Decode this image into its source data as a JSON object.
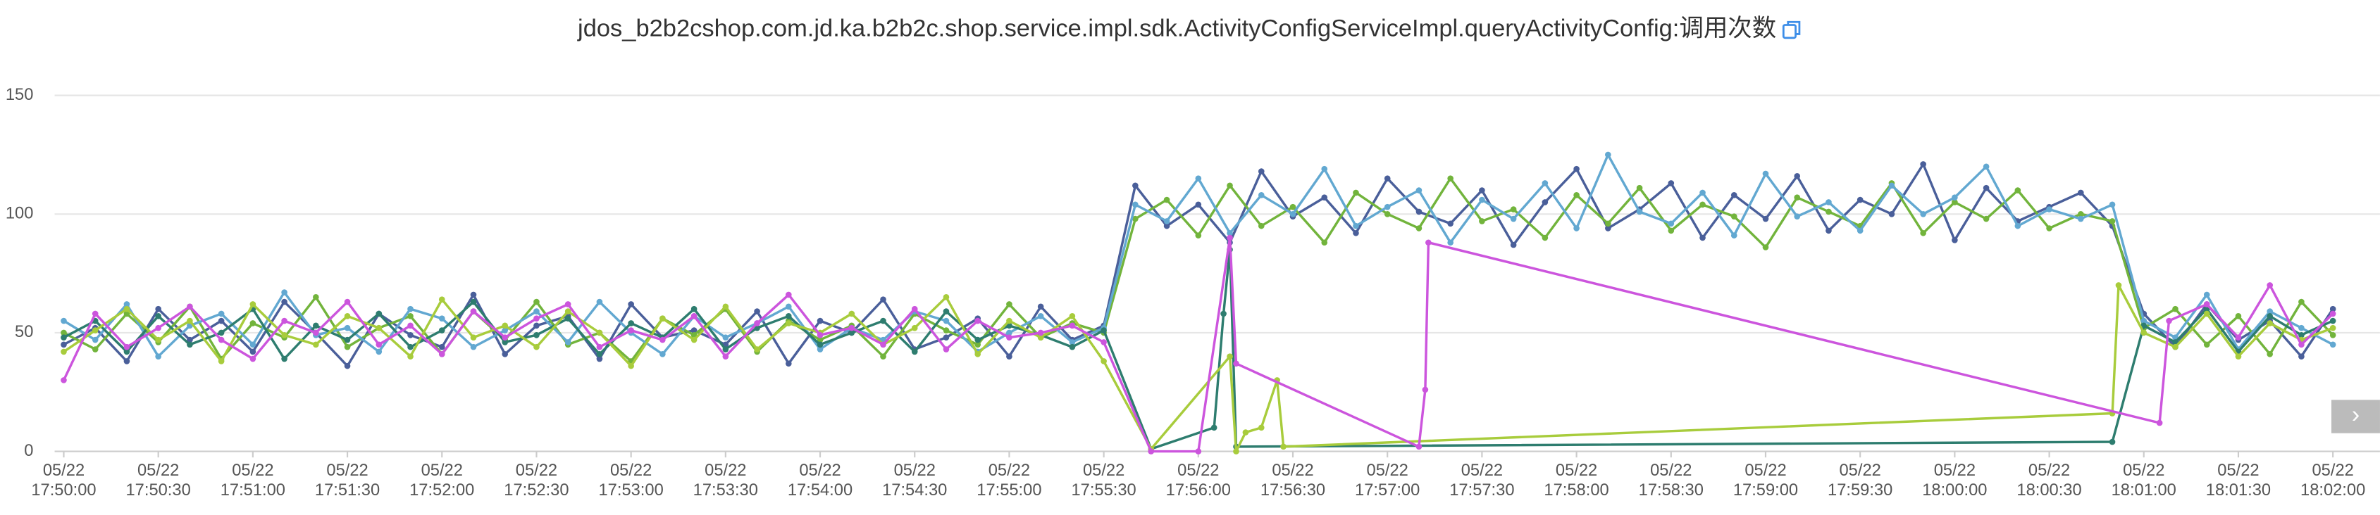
{
  "chart_data": {
    "type": "line",
    "title": "jdos_b2b2cshop.com.jd.ka.b2b2c.shop.service.impl.sdk.ActivityConfigServiceImpl.queryActivityConfig:调用次数",
    "xlim": [
      "17:50:00",
      "18:02:00"
    ],
    "xticks": [
      {
        "value": "17:50:00",
        "label": "05/22 17:50:00"
      },
      {
        "value": "17:50:30",
        "label": "05/22 17:50:30"
      },
      {
        "value": "17:51:00",
        "label": "05/22 17:51:00"
      },
      {
        "value": "17:51:30",
        "label": "05/22 17:51:30"
      },
      {
        "value": "17:52:00",
        "label": "05/22 17:52:00"
      },
      {
        "value": "17:52:30",
        "label": "05/22 17:52:30"
      },
      {
        "value": "17:53:00",
        "label": "05/22 17:53:00"
      },
      {
        "value": "17:53:30",
        "label": "05/22 17:53:30"
      },
      {
        "value": "17:54:00",
        "label": "05/22 17:54:00"
      },
      {
        "value": "17:54:30",
        "label": "05/22 17:54:30"
      },
      {
        "value": "17:55:00",
        "label": "05/22 17:55:00"
      },
      {
        "value": "17:55:30",
        "label": "05/22 17:55:30"
      },
      {
        "value": "17:56:00",
        "label": "05/22 17:56:00"
      },
      {
        "value": "17:56:30",
        "label": "05/22 17:56:30"
      },
      {
        "value": "17:57:00",
        "label": "05/22 17:57:00"
      },
      {
        "value": "17:57:30",
        "label": "05/22 17:57:30"
      },
      {
        "value": "17:58:00",
        "label": "05/22 17:58:00"
      },
      {
        "value": "17:58:30",
        "label": "05/22 17:58:30"
      },
      {
        "value": "17:59:00",
        "label": "05/22 17:59:00"
      },
      {
        "value": "17:59:30",
        "label": "05/22 17:59:30"
      },
      {
        "value": "18:00:00",
        "label": "05/22 18:00:00"
      },
      {
        "value": "18:00:30",
        "label": "05/22 18:00:30"
      },
      {
        "value": "18:01:00",
        "label": "05/22 18:01:00"
      },
      {
        "value": "18:01:30",
        "label": "05/22 18:01:30"
      },
      {
        "value": "18:02:00",
        "label": "05/22 18:02:00"
      }
    ],
    "ylim": [
      0,
      150
    ],
    "yticks": [
      0,
      50,
      100,
      150
    ],
    "grid": true,
    "series": [
      {
        "color": "#4a5f9a",
        "x": [
          "17:50:00",
          "17:50:10",
          "17:50:20",
          "17:50:30",
          "17:50:40",
          "17:50:50",
          "17:51:00",
          "17:51:10",
          "17:51:20",
          "17:51:30",
          "17:51:40",
          "17:51:50",
          "17:52:00",
          "17:52:10",
          "17:52:20",
          "17:52:30",
          "17:52:40",
          "17:52:50",
          "17:53:00",
          "17:53:10",
          "17:53:20",
          "17:53:30",
          "17:53:40",
          "17:53:50",
          "17:54:00",
          "17:54:10",
          "17:54:20",
          "17:54:30",
          "17:54:40",
          "17:54:50",
          "17:55:00",
          "17:55:10",
          "17:55:20",
          "17:55:30",
          "17:55:40",
          "17:55:50",
          "17:56:00",
          "17:56:10",
          "17:56:20",
          "17:56:30",
          "17:56:40",
          "17:56:50",
          "17:57:00",
          "17:57:10",
          "17:57:20",
          "17:57:30",
          "17:57:40",
          "17:57:50",
          "17:58:00",
          "17:58:10",
          "17:58:20",
          "17:58:30",
          "17:58:40",
          "17:58:50",
          "17:59:00",
          "17:59:10",
          "17:59:20",
          "17:59:30",
          "17:59:40",
          "17:59:50",
          "18:00:00",
          "18:00:10",
          "18:00:20",
          "18:00:30",
          "18:00:40",
          "18:00:50",
          "18:01:00",
          "18:01:10",
          "18:01:20",
          "18:01:30",
          "18:01:40",
          "18:01:50",
          "18:02:00"
        ],
        "values": [
          45,
          52,
          38,
          60,
          47,
          55,
          42,
          63,
          50,
          36,
          58,
          49,
          44,
          66,
          41,
          53,
          57,
          39,
          62,
          48,
          51,
          45,
          59,
          37,
          55,
          50,
          64,
          43,
          48,
          56,
          40,
          61,
          47,
          53,
          112,
          95,
          104,
          88,
          118,
          99,
          107,
          92,
          115,
          101,
          96,
          110,
          87,
          105,
          119,
          94,
          102,
          113,
          90,
          108,
          98,
          116,
          93,
          106,
          100,
          121,
          89,
          111,
          97,
          103,
          109,
          95,
          58,
          44,
          62,
          47,
          55,
          40,
          60
        ]
      },
      {
        "color": "#72b43c",
        "x": [
          "17:50:00",
          "17:50:10",
          "17:50:20",
          "17:50:30",
          "17:50:40",
          "17:50:50",
          "17:51:00",
          "17:51:10",
          "17:51:20",
          "17:51:30",
          "17:51:40",
          "17:51:50",
          "17:52:00",
          "17:52:10",
          "17:52:20",
          "17:52:30",
          "17:52:40",
          "17:52:50",
          "17:53:00",
          "17:53:10",
          "17:53:20",
          "17:53:30",
          "17:53:40",
          "17:53:50",
          "17:54:00",
          "17:54:10",
          "17:54:20",
          "17:54:30",
          "17:54:40",
          "17:54:50",
          "17:55:00",
          "17:55:10",
          "17:55:20",
          "17:55:30",
          "17:55:40",
          "17:55:50",
          "17:56:00",
          "17:56:10",
          "17:56:20",
          "17:56:30",
          "17:56:40",
          "17:56:50",
          "17:57:00",
          "17:57:10",
          "17:57:20",
          "17:57:30",
          "17:57:40",
          "17:57:50",
          "17:58:00",
          "17:58:10",
          "17:58:20",
          "17:58:30",
          "17:58:40",
          "17:58:50",
          "17:59:00",
          "17:59:10",
          "17:59:20",
          "17:59:30",
          "17:59:40",
          "17:59:50",
          "18:00:00",
          "18:00:10",
          "18:00:20",
          "18:00:30",
          "18:00:40",
          "18:00:50",
          "18:01:00",
          "18:01:10",
          "18:01:20",
          "18:01:30",
          "18:01:40",
          "18:01:50",
          "18:02:00"
        ],
        "values": [
          50,
          43,
          58,
          46,
          61,
          39,
          54,
          48,
          65,
          44,
          52,
          57,
          41,
          59,
          47,
          63,
          45,
          50,
          38,
          56,
          49,
          60,
          42,
          55,
          47,
          53,
          40,
          58,
          51,
          45,
          62,
          48,
          54,
          50,
          98,
          106,
          91,
          112,
          95,
          103,
          88,
          109,
          100,
          94,
          115,
          97,
          102,
          90,
          108,
          96,
          111,
          93,
          104,
          99,
          86,
          107,
          101,
          95,
          113,
          92,
          105,
          98,
          110,
          94,
          100,
          97,
          52,
          60,
          45,
          57,
          41,
          63,
          49
        ]
      },
      {
        "color": "#62a8d1",
        "x": [
          "17:50:00",
          "17:50:10",
          "17:50:20",
          "17:50:30",
          "17:50:40",
          "17:50:50",
          "17:51:00",
          "17:51:10",
          "17:51:20",
          "17:51:30",
          "17:51:40",
          "17:51:50",
          "17:52:00",
          "17:52:10",
          "17:52:20",
          "17:52:30",
          "17:52:40",
          "17:52:50",
          "17:53:00",
          "17:53:10",
          "17:53:20",
          "17:53:30",
          "17:53:40",
          "17:53:50",
          "17:54:00",
          "17:54:10",
          "17:54:20",
          "17:54:30",
          "17:54:40",
          "17:54:50",
          "17:55:00",
          "17:55:10",
          "17:55:20",
          "17:55:30",
          "17:55:40",
          "17:55:50",
          "17:56:00",
          "17:56:10",
          "17:56:20",
          "17:56:30",
          "17:56:40",
          "17:56:50",
          "17:57:00",
          "17:57:10",
          "17:57:20",
          "17:57:30",
          "17:57:40",
          "17:57:50",
          "17:58:00",
          "17:58:10",
          "17:58:20",
          "17:58:30",
          "17:58:40",
          "17:58:50",
          "17:59:00",
          "17:59:10",
          "17:59:20",
          "17:59:30",
          "17:59:40",
          "17:59:50",
          "18:00:00",
          "18:00:10",
          "18:00:20",
          "18:00:30",
          "18:00:40",
          "18:00:50",
          "18:01:00",
          "18:01:10",
          "18:01:20",
          "18:01:30",
          "18:01:40",
          "18:01:50",
          "18:02:00"
        ],
        "values": [
          55,
          47,
          62,
          40,
          53,
          58,
          45,
          67,
          49,
          52,
          42,
          60,
          56,
          44,
          51,
          59,
          46,
          63,
          50,
          41,
          57,
          48,
          54,
          61,
          43,
          52,
          47,
          59,
          55,
          42,
          50,
          57,
          46,
          52,
          104,
          97,
          115,
          92,
          108,
          100,
          119,
          95,
          103,
          110,
          88,
          106,
          98,
          113,
          94,
          125,
          101,
          96,
          109,
          91,
          117,
          99,
          105,
          93,
          112,
          100,
          107,
          120,
          95,
          102,
          98,
          104,
          55,
          48,
          66,
          43,
          59,
          52,
          45
        ]
      },
      {
        "color": "#2e7d6f",
        "x": [
          "17:50:00",
          "17:50:10",
          "17:50:20",
          "17:50:30",
          "17:50:40",
          "17:50:50",
          "17:51:00",
          "17:51:10",
          "17:51:20",
          "17:51:30",
          "17:51:40",
          "17:51:50",
          "17:52:00",
          "17:52:10",
          "17:52:20",
          "17:52:30",
          "17:52:40",
          "17:52:50",
          "17:53:00",
          "17:53:10",
          "17:53:20",
          "17:53:30",
          "17:53:40",
          "17:53:50",
          "17:54:00",
          "17:54:10",
          "17:54:20",
          "17:54:30",
          "17:54:40",
          "17:54:50",
          "17:55:00",
          "17:55:10",
          "17:55:20",
          "17:55:30",
          "17:55:45",
          "17:56:05",
          "17:56:08",
          "17:56:10",
          "17:56:12",
          "18:00:50",
          "18:01:00",
          "18:01:10",
          "18:01:20",
          "18:01:30",
          "18:01:40",
          "18:01:50",
          "18:02:00"
        ],
        "values": [
          48,
          55,
          42,
          57,
          45,
          50,
          60,
          39,
          53,
          47,
          58,
          44,
          51,
          63,
          46,
          49,
          56,
          41,
          54,
          48,
          60,
          43,
          52,
          57,
          45,
          50,
          55,
          42,
          59,
          47,
          53,
          49,
          44,
          51,
          1,
          10,
          58,
          85,
          2,
          4,
          53,
          46,
          60,
          42,
          57,
          49,
          55
        ]
      },
      {
        "color": "#a8cc3c",
        "x": [
          "17:50:00",
          "17:50:10",
          "17:50:20",
          "17:50:30",
          "17:50:40",
          "17:50:50",
          "17:51:00",
          "17:51:10",
          "17:51:20",
          "17:51:30",
          "17:51:40",
          "17:51:50",
          "17:52:00",
          "17:52:10",
          "17:52:20",
          "17:52:30",
          "17:52:40",
          "17:52:50",
          "17:53:00",
          "17:53:10",
          "17:53:20",
          "17:53:30",
          "17:53:40",
          "17:53:50",
          "17:54:00",
          "17:54:10",
          "17:54:20",
          "17:54:30",
          "17:54:40",
          "17:54:50",
          "17:55:00",
          "17:55:10",
          "17:55:20",
          "17:55:30",
          "17:55:45",
          "17:56:10",
          "17:56:12",
          "17:56:15",
          "17:56:20",
          "17:56:25",
          "17:56:27",
          "18:00:50",
          "18:00:52",
          "18:01:00",
          "18:01:10",
          "18:01:20",
          "18:01:30",
          "18:01:40",
          "18:01:50",
          "18:02:00"
        ],
        "values": [
          42,
          51,
          60,
          47,
          55,
          38,
          62,
          49,
          45,
          57,
          52,
          40,
          64,
          48,
          53,
          44,
          59,
          50,
          36,
          56,
          47,
          61,
          43,
          54,
          50,
          58,
          45,
          52,
          65,
          41,
          55,
          48,
          57,
          38,
          1,
          40,
          0,
          8,
          10,
          30,
          2,
          16,
          70,
          50,
          44,
          58,
          40,
          54,
          47,
          52
        ]
      },
      {
        "color": "#cc55dd",
        "x": [
          "17:50:00",
          "17:50:10",
          "17:50:20",
          "17:50:30",
          "17:50:40",
          "17:50:50",
          "17:51:00",
          "17:51:10",
          "17:51:20",
          "17:51:30",
          "17:51:40",
          "17:51:50",
          "17:52:00",
          "17:52:10",
          "17:52:20",
          "17:52:30",
          "17:52:40",
          "17:52:50",
          "17:53:00",
          "17:53:10",
          "17:53:20",
          "17:53:30",
          "17:53:40",
          "17:53:50",
          "17:54:00",
          "17:54:10",
          "17:54:20",
          "17:54:30",
          "17:54:40",
          "17:54:50",
          "17:55:00",
          "17:55:10",
          "17:55:20",
          "17:55:30",
          "17:55:45",
          "17:56:00",
          "17:56:10",
          "17:56:12",
          "17:57:10",
          "17:57:12",
          "17:57:13",
          "18:01:05",
          "18:01:08",
          "18:01:20",
          "18:01:30",
          "18:01:40",
          "18:01:50",
          "18:02:00"
        ],
        "values": [
          30,
          58,
          44,
          52,
          61,
          47,
          39,
          55,
          50,
          63,
          45,
          53,
          41,
          59,
          48,
          56,
          62,
          44,
          51,
          47,
          57,
          40,
          54,
          66,
          49,
          52,
          45,
          60,
          43,
          55,
          48,
          50,
          53,
          46,
          0,
          0,
          90,
          37,
          2,
          26,
          88,
          12,
          55,
          62,
          48,
          70,
          45,
          58
        ]
      }
    ]
  }
}
